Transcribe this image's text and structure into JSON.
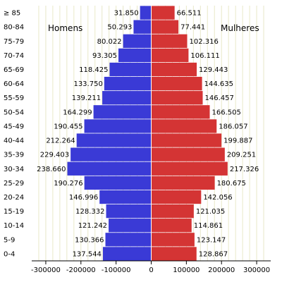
{
  "chart_data": {
    "type": "bar",
    "orientation": "horizontal",
    "categories": [
      "0-4",
      "5-9",
      "10-14",
      "15-19",
      "20-24",
      "25-29",
      "30-34",
      "35-39",
      "40-44",
      "45-49",
      "50-54",
      "55-59",
      "60-64",
      "65-69",
      "70-74",
      "75-79",
      "80-84",
      "≥ 85"
    ],
    "series": [
      {
        "name": "Homens",
        "color": "#3a3ad6",
        "values": [
          137544,
          130366,
          121242,
          128332,
          146996,
          190276,
          238660,
          229403,
          212264,
          190455,
          164299,
          139211,
          133750,
          118425,
          93305,
          80022,
          50293,
          31850
        ],
        "labels": [
          "137.544",
          "130.366",
          "121.242",
          "128.332",
          "146.996",
          "190.276",
          "238.660",
          "229.403",
          "212.264",
          "190.455",
          "164.299",
          "139.211",
          "133.750",
          "118.425",
          "93.305",
          "80.022",
          "50.293",
          "31.850"
        ]
      },
      {
        "name": "Mulheres",
        "color": "#d43434",
        "values": [
          128867,
          123147,
          114861,
          121035,
          142056,
          180675,
          217326,
          209251,
          199887,
          186057,
          166505,
          146457,
          144635,
          129443,
          106111,
          102316,
          77441,
          66511
        ],
        "labels": [
          "128.867",
          "123.147",
          "114.861",
          "121.035",
          "142.056",
          "180.675",
          "217.326",
          "209.251",
          "199.887",
          "186.057",
          "166.505",
          "146.457",
          "144.635",
          "129.443",
          "106.111",
          "102.316",
          "77.441",
          "66.511"
        ]
      }
    ],
    "xlim": [
      -340000,
      340000
    ],
    "xticks": [
      -300000,
      -200000,
      -100000,
      0,
      100000,
      200000,
      300000
    ],
    "xtick_labels": [
      "-300000",
      "-200000",
      "-100000",
      "0",
      "100000",
      "200000",
      "300000"
    ],
    "grid": "vertical",
    "legend": "top"
  }
}
